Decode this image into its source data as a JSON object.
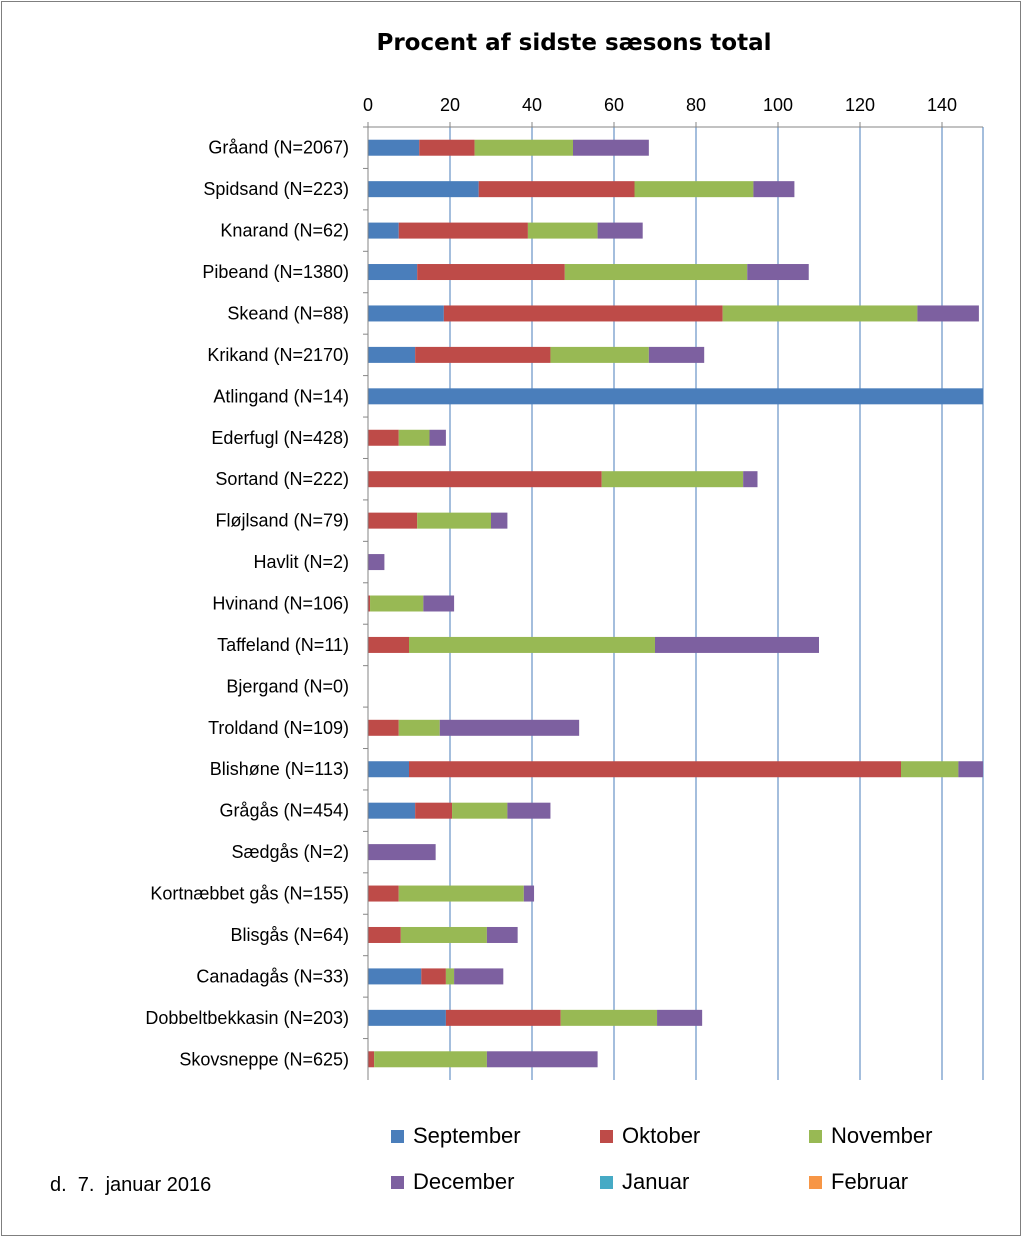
{
  "chart_data": {
    "type": "bar",
    "orientation": "horizontal",
    "stacked": true,
    "title": "Procent af sidste sæsons total",
    "xlim": [
      0,
      150
    ],
    "x_ticks": [
      0,
      20,
      40,
      60,
      80,
      100,
      120,
      140
    ],
    "x_axis_position": "top",
    "grid": "vertical lines",
    "legend_position": "bottom",
    "categories": [
      "Gråand (N=2067)",
      "Spidsand (N=223)",
      "Knarand (N=62)",
      "Pibeand (N=1380)",
      "Skeand (N=88)",
      "Krikand (N=2170)",
      "Atlingand (N=14)",
      "Ederfugl (N=428)",
      "Sortand (N=222)",
      "Fløjlsand (N=79)",
      "Havlit (N=2)",
      "Hvinand (N=106)",
      "Taffeland (N=11)",
      "Bjergand (N=0)",
      "Troldand (N=109)",
      "Blishøne (N=113)",
      "Grågås (N=454)",
      "Sædgås (N=2)",
      "Kortnæbbet gås (N=155)",
      "Blisgås (N=64)",
      "Canadagås (N=33)",
      "Dobbeltbekkasin (N=203)",
      "Skovsneppe (N=625)"
    ],
    "series": [
      {
        "name": "September",
        "color": "#4a7ebb",
        "values": [
          12.5,
          27,
          7.5,
          12,
          18.5,
          11.5,
          150,
          0,
          0,
          0,
          0,
          0,
          0,
          0,
          0,
          10,
          11.5,
          0,
          0,
          0,
          13,
          19,
          0
        ]
      },
      {
        "name": "Oktober",
        "color": "#be4b48",
        "values": [
          13.5,
          38,
          31.5,
          36,
          68,
          33,
          0,
          7.5,
          57,
          12,
          0,
          0.5,
          10,
          0,
          7.5,
          120,
          9,
          0,
          7.5,
          8,
          6,
          28,
          1.5
        ]
      },
      {
        "name": "November",
        "color": "#98b954",
        "values": [
          24,
          29,
          17,
          44.5,
          47.5,
          24,
          0,
          7.5,
          34.5,
          18,
          0,
          13,
          60,
          0,
          10,
          14,
          13.5,
          0,
          30.5,
          21,
          2,
          23.5,
          27.5
        ]
      },
      {
        "name": "December",
        "color": "#7d60a0",
        "values": [
          18.5,
          10,
          11,
          15,
          15,
          13.5,
          0,
          4,
          3.5,
          4,
          4,
          7.5,
          40,
          0,
          34,
          6,
          10.5,
          16.5,
          2.5,
          7.5,
          12,
          11,
          27
        ]
      },
      {
        "name": "Januar",
        "color": "#46aac5",
        "values": [
          0,
          0,
          0,
          0,
          0,
          0,
          0,
          0,
          0,
          0,
          0,
          0,
          0,
          0,
          0,
          0,
          0,
          0,
          0,
          0,
          0,
          0,
          0
        ]
      },
      {
        "name": "Februar",
        "color": "#f79646",
        "values": [
          0,
          0,
          0,
          0,
          0,
          0,
          0,
          0,
          0,
          0,
          0,
          0,
          0,
          0,
          0,
          0,
          0,
          0,
          0,
          0,
          0,
          0,
          0
        ]
      }
    ]
  },
  "footer": {
    "date": "d.  7.  januar 2016"
  }
}
